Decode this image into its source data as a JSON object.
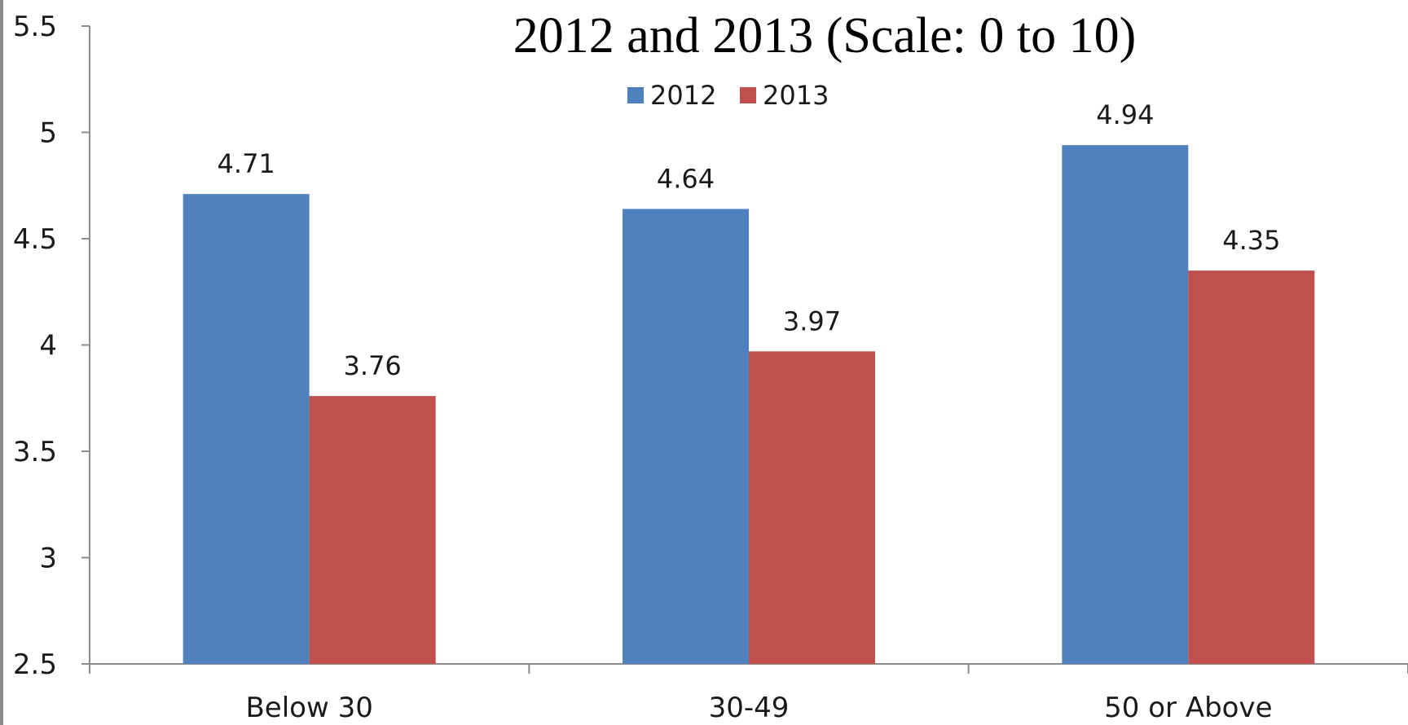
{
  "chart_data": {
    "type": "bar",
    "title": "2012 and 2013 (Scale:  0 to 10)",
    "xlabel": "",
    "ylabel": "",
    "ylim": [
      2.5,
      5.5
    ],
    "yticks": [
      "2.5",
      "3",
      "3.5",
      "4",
      "4.5",
      "5",
      "5.5"
    ],
    "categories": [
      "Below 30",
      "30-49",
      "50 or Above"
    ],
    "series": [
      {
        "name": "2012",
        "color": "#4F81BD",
        "values": [
          4.71,
          4.64,
          4.94
        ],
        "labels": [
          "4.71",
          "4.64",
          "4.94"
        ]
      },
      {
        "name": "2013",
        "color": "#C0504D",
        "values": [
          3.76,
          3.97,
          4.35
        ],
        "labels": [
          "3.76",
          "3.97",
          "4.35"
        ]
      }
    ],
    "legend_position": "top-center",
    "grid": false
  }
}
